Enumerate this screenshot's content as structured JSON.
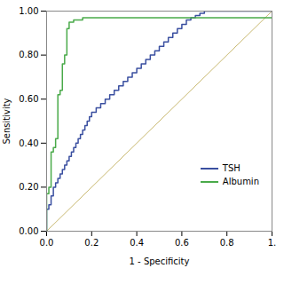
{
  "chart_data": {
    "type": "line",
    "xlabel": "1 - Specificity",
    "ylabel": "Sensitivity",
    "xlim": [
      0.0,
      1.0
    ],
    "ylim": [
      0.0,
      1.0
    ],
    "xticks": [
      {
        "value": 0.0,
        "label": "0.0"
      },
      0.2,
      0.4,
      0.6,
      0.8,
      {
        "value": 1.0,
        "label": "1."
      }
    ],
    "yticks": [
      {
        "value": 0.0,
        "label": "0.00"
      },
      {
        "value": 0.2,
        "label": "0.20"
      },
      {
        "value": 0.4,
        "label": "0.40"
      },
      {
        "value": 0.6,
        "label": "0.60"
      },
      {
        "value": 0.8,
        "label": "0.80"
      },
      {
        "value": 1.0,
        "label": "1.00"
      }
    ],
    "grid": false,
    "legend": "lower right",
    "series": [
      {
        "color": "#c8b870",
        "x": [
          0,
          1
        ],
        "values": [
          0,
          1
        ]
      },
      {
        "name": "TSH",
        "color": "#3a4fa0",
        "x": [
          0.0,
          0.0,
          0.01,
          0.01,
          0.02,
          0.02,
          0.03,
          0.03,
          0.04,
          0.04,
          0.05,
          0.05,
          0.06,
          0.06,
          0.07,
          0.07,
          0.08,
          0.08,
          0.09,
          0.09,
          0.1,
          0.1,
          0.11,
          0.11,
          0.12,
          0.12,
          0.13,
          0.13,
          0.14,
          0.14,
          0.15,
          0.15,
          0.16,
          0.16,
          0.17,
          0.17,
          0.18,
          0.18,
          0.19,
          0.19,
          0.2,
          0.2,
          0.22,
          0.22,
          0.24,
          0.24,
          0.26,
          0.26,
          0.28,
          0.28,
          0.3,
          0.3,
          0.32,
          0.32,
          0.34,
          0.34,
          0.36,
          0.36,
          0.38,
          0.38,
          0.4,
          0.4,
          0.42,
          0.42,
          0.44,
          0.44,
          0.46,
          0.46,
          0.48,
          0.48,
          0.5,
          0.5,
          0.52,
          0.52,
          0.54,
          0.54,
          0.56,
          0.56,
          0.58,
          0.58,
          0.6,
          0.6,
          0.62,
          0.62,
          0.64,
          0.64,
          0.66,
          0.66,
          0.68,
          0.68,
          0.7,
          0.7,
          0.72,
          0.72,
          0.74,
          0.74,
          0.76,
          0.76,
          0.78,
          0.78,
          0.8,
          0.8,
          0.84,
          0.84,
          0.88,
          0.88,
          1.0
        ],
        "values": [
          0.0,
          0.1,
          0.1,
          0.12,
          0.12,
          0.16,
          0.16,
          0.2,
          0.2,
          0.22,
          0.22,
          0.24,
          0.24,
          0.26,
          0.26,
          0.28,
          0.28,
          0.3,
          0.3,
          0.32,
          0.32,
          0.34,
          0.34,
          0.36,
          0.36,
          0.38,
          0.38,
          0.4,
          0.4,
          0.42,
          0.42,
          0.44,
          0.44,
          0.46,
          0.46,
          0.48,
          0.48,
          0.5,
          0.5,
          0.52,
          0.52,
          0.54,
          0.54,
          0.56,
          0.56,
          0.58,
          0.58,
          0.6,
          0.6,
          0.62,
          0.62,
          0.64,
          0.64,
          0.66,
          0.66,
          0.68,
          0.68,
          0.7,
          0.7,
          0.72,
          0.72,
          0.74,
          0.74,
          0.76,
          0.76,
          0.78,
          0.78,
          0.8,
          0.8,
          0.82,
          0.82,
          0.84,
          0.84,
          0.86,
          0.86,
          0.88,
          0.88,
          0.9,
          0.9,
          0.92,
          0.92,
          0.94,
          0.94,
          0.96,
          0.96,
          0.97,
          0.97,
          0.98,
          0.98,
          0.99,
          0.99,
          1.0,
          1.0,
          1.0,
          1.0,
          1.0,
          1.0,
          1.0,
          1.0,
          1.0,
          1.0,
          1.0,
          1.0,
          1.0,
          1.0,
          1.0,
          1.0
        ]
      },
      {
        "name": "Albumin",
        "color": "#4aaa4a",
        "x": [
          0.0,
          0.0,
          0.01,
          0.01,
          0.02,
          0.02,
          0.03,
          0.03,
          0.04,
          0.04,
          0.05,
          0.05,
          0.06,
          0.06,
          0.07,
          0.07,
          0.08,
          0.08,
          0.09,
          0.09,
          0.1,
          0.1,
          0.12,
          0.12,
          0.16,
          0.16,
          0.2,
          0.2,
          0.3,
          0.3,
          0.4,
          0.5,
          0.6,
          0.7,
          0.8,
          0.9,
          1.0
        ],
        "values": [
          0.0,
          0.17,
          0.17,
          0.2,
          0.2,
          0.36,
          0.36,
          0.38,
          0.38,
          0.42,
          0.42,
          0.62,
          0.62,
          0.64,
          0.64,
          0.76,
          0.76,
          0.8,
          0.8,
          0.92,
          0.92,
          0.95,
          0.95,
          0.96,
          0.96,
          0.97,
          0.97,
          0.97,
          0.97,
          0.97,
          0.97,
          0.97,
          0.97,
          0.97,
          0.97,
          0.97,
          0.97
        ]
      }
    ]
  }
}
